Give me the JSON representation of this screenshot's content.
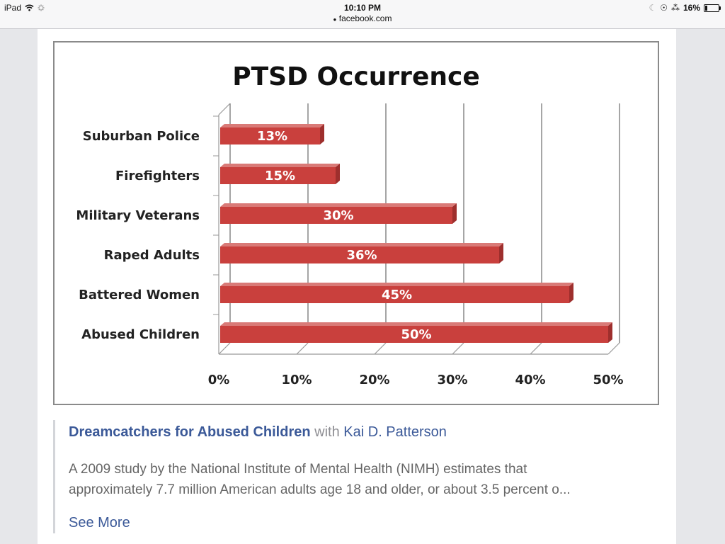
{
  "status_bar": {
    "device": "iPad",
    "time": "10:10 PM",
    "url": "facebook.com",
    "battery_percent": "16%",
    "battery_level": 0.16,
    "icons": [
      "wifi-icon",
      "activity-spinner-icon",
      "lock-icon",
      "moon-icon",
      "rotation-lock-icon",
      "bluetooth-icon",
      "battery-icon"
    ]
  },
  "chart_data": {
    "type": "bar",
    "orientation": "horizontal",
    "title": "PTSD Occurrence",
    "categories": [
      "Suburban Police",
      "Firefighters",
      "Military Veterans",
      "Raped Adults",
      "Battered Women",
      "Abused Children"
    ],
    "values": [
      13,
      15,
      30,
      36,
      45,
      50
    ],
    "data_labels": [
      "13%",
      "15%",
      "30%",
      "36%",
      "45%",
      "50%"
    ],
    "xlabel": "",
    "ylabel": "",
    "xlim": [
      0,
      50
    ],
    "x_ticks": [
      0,
      10,
      20,
      30,
      40,
      50
    ],
    "x_tick_labels": [
      "0%",
      "10%",
      "20%",
      "30%",
      "40%",
      "50%"
    ],
    "grid": true,
    "legend": "none",
    "bar_color": "#c9403d"
  },
  "post": {
    "page_name": "Dreamcatchers for Abused Children",
    "with_text": "with",
    "tagged_user": "Kai D. Patterson",
    "description_line1": "A 2009 study by the National Institute of Mental Health (NIMH) estimates that",
    "description_line2": "approximately 7.7 million American adults age 18 and older, or about 3.5 percent o...",
    "see_more": "See More"
  }
}
